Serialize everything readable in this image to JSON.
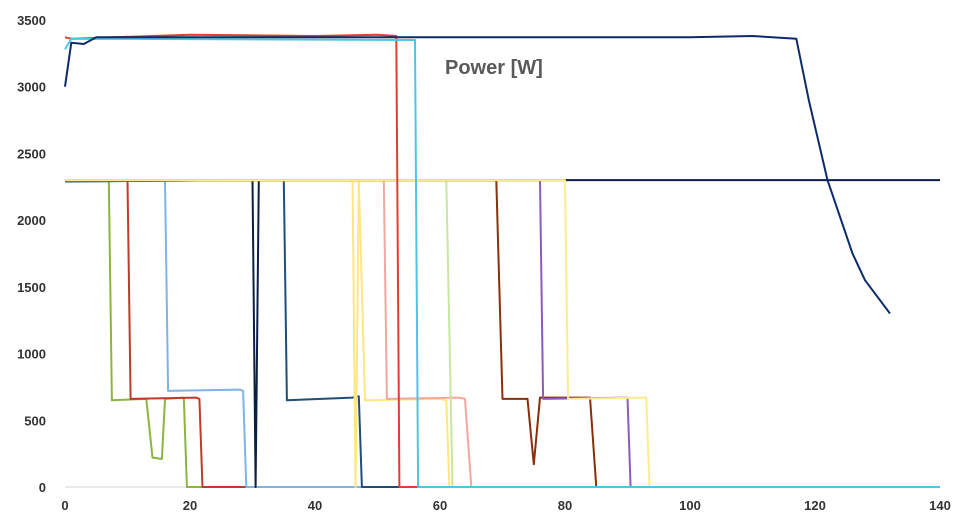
{
  "chart_data": {
    "type": "line",
    "title": "Power [W]",
    "xlabel": "",
    "ylabel": "",
    "xlim": [
      0,
      140
    ],
    "ylim": [
      0,
      3500
    ],
    "x_ticks": [
      "0",
      "20",
      "40",
      "60",
      "80",
      "100",
      "120",
      "140"
    ],
    "y_ticks": [
      "0",
      "500",
      "1000",
      "1500",
      "2000",
      "2500",
      "3000",
      "3500"
    ],
    "grid": false,
    "legend": "none",
    "series": [
      {
        "color": "#8EB440",
        "points": [
          [
            0,
            2300
          ],
          [
            7,
            2300
          ],
          [
            7.5,
            650
          ],
          [
            13,
            660
          ],
          [
            14,
            220
          ],
          [
            15.5,
            210
          ],
          [
            16,
            660
          ],
          [
            19,
            670
          ],
          [
            19.5,
            0
          ],
          [
            140,
            0
          ]
        ]
      },
      {
        "color": "#C0392B",
        "points": [
          [
            0,
            2300
          ],
          [
            10,
            2300
          ],
          [
            10.5,
            660
          ],
          [
            21,
            670
          ],
          [
            21.5,
            660
          ],
          [
            22,
            0
          ],
          [
            140,
            0
          ]
        ]
      },
      {
        "color": "#7FB2E5",
        "points": [
          [
            0,
            2300
          ],
          [
            16,
            2300
          ],
          [
            16.5,
            720
          ],
          [
            28,
            730
          ],
          [
            28.5,
            720
          ],
          [
            29,
            0
          ],
          [
            140,
            0
          ]
        ]
      },
      {
        "color": "#0A1F44",
        "points": [
          [
            0,
            2290
          ],
          [
            30,
            2300
          ],
          [
            30.5,
            0
          ],
          [
            31,
            2300
          ],
          [
            140,
            2300
          ]
        ]
      },
      {
        "color": "#1F4E79",
        "points": [
          [
            0,
            2290
          ],
          [
            30,
            2300
          ],
          [
            35,
            2300
          ],
          [
            35.5,
            650
          ],
          [
            46,
            670
          ],
          [
            47,
            680
          ],
          [
            47.5,
            0
          ],
          [
            140,
            0
          ]
        ]
      },
      {
        "color": "#FFE680",
        "points": [
          [
            0,
            2300
          ],
          [
            46,
            2300
          ],
          [
            46.5,
            0
          ],
          [
            47,
            2300
          ],
          [
            48,
            650
          ],
          [
            60,
            660
          ],
          [
            61,
            650
          ],
          [
            61.5,
            0
          ],
          [
            140,
            0
          ]
        ]
      },
      {
        "color": "#F4A7A0",
        "points": [
          [
            0,
            2300
          ],
          [
            51,
            2300
          ],
          [
            51.5,
            660
          ],
          [
            63,
            670
          ],
          [
            64,
            660
          ],
          [
            65,
            0
          ],
          [
            140,
            0
          ]
        ]
      },
      {
        "color": "#C8E6A0",
        "points": [
          [
            0,
            2300
          ],
          [
            61,
            2300
          ],
          [
            62,
            0
          ],
          [
            140,
            0
          ]
        ]
      },
      {
        "color": "#8B2E0B",
        "points": [
          [
            0,
            2300
          ],
          [
            69,
            2300
          ],
          [
            70,
            660
          ],
          [
            74,
            660
          ],
          [
            75,
            170
          ],
          [
            76,
            670
          ],
          [
            84,
            670
          ],
          [
            85,
            0
          ],
          [
            140,
            0
          ]
        ]
      },
      {
        "color": "#8E5BBA",
        "points": [
          [
            0,
            2300
          ],
          [
            76,
            2300
          ],
          [
            76.5,
            660
          ],
          [
            90,
            670
          ],
          [
            90.5,
            0
          ],
          [
            140,
            0
          ]
        ]
      },
      {
        "color": "#FDEB8F",
        "points": [
          [
            0,
            2300
          ],
          [
            80,
            2300
          ],
          [
            80.5,
            660
          ],
          [
            93,
            670
          ],
          [
            93.5,
            0
          ],
          [
            140,
            0
          ]
        ]
      },
      {
        "color": "#E03C31",
        "points": [
          [
            0,
            3370
          ],
          [
            1,
            3360
          ],
          [
            20,
            3390
          ],
          [
            40,
            3380
          ],
          [
            50,
            3390
          ],
          [
            53,
            3380
          ],
          [
            53.5,
            0
          ],
          [
            140,
            0
          ]
        ]
      },
      {
        "color": "#4FC3E8",
        "points": [
          [
            0,
            3280
          ],
          [
            1,
            3360
          ],
          [
            56,
            3350
          ],
          [
            56.5,
            0
          ],
          [
            140,
            0
          ]
        ]
      },
      {
        "color": "#0D2B6B",
        "points": [
          [
            0,
            3000
          ],
          [
            1,
            3330
          ],
          [
            3,
            3320
          ],
          [
            5,
            3370
          ],
          [
            40,
            3370
          ],
          [
            60,
            3370
          ],
          [
            100,
            3370
          ],
          [
            110,
            3380
          ],
          [
            117,
            3360
          ],
          [
            119,
            2900
          ],
          [
            122,
            2300
          ],
          [
            126,
            1750
          ],
          [
            128,
            1550
          ],
          [
            132,
            1300
          ]
        ]
      }
    ]
  }
}
